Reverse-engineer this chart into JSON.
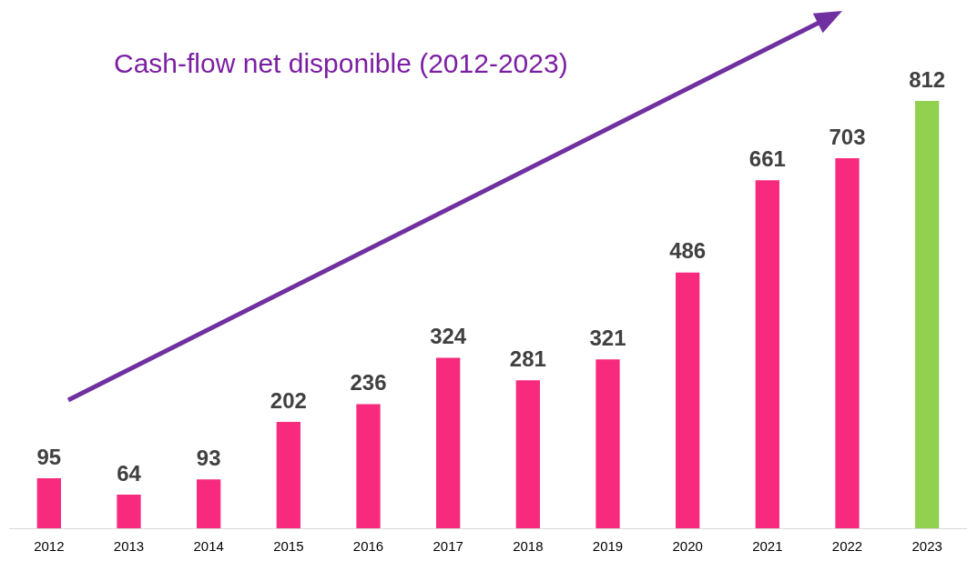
{
  "chart_data": {
    "type": "bar",
    "title": "Cash-flow net disponible (2012-2023)",
    "categories": [
      "2012",
      "2013",
      "2014",
      "2015",
      "2016",
      "2017",
      "2018",
      "2019",
      "2020",
      "2021",
      "2022",
      "2023"
    ],
    "values": [
      95,
      64,
      93,
      202,
      236,
      324,
      281,
      321,
      486,
      661,
      703,
      812
    ],
    "colors": [
      "#f72a7e",
      "#f72a7e",
      "#f72a7e",
      "#f72a7e",
      "#f72a7e",
      "#f72a7e",
      "#f72a7e",
      "#f72a7e",
      "#f72a7e",
      "#f72a7e",
      "#f72a7e",
      "#92d050"
    ],
    "data_labels": true,
    "grid": false,
    "legend": false
  }
}
